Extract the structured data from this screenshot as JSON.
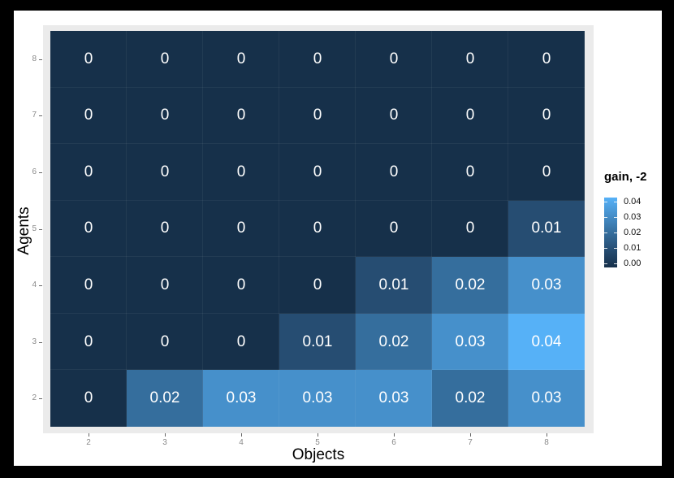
{
  "chart_data": {
    "type": "heatmap",
    "title": "",
    "xlabel": "Objects",
    "ylabel": "Agents",
    "x_categories": [
      "2",
      "3",
      "4",
      "5",
      "6",
      "7",
      "8"
    ],
    "y_categories": [
      "8",
      "7",
      "6",
      "5",
      "4",
      "3",
      "2"
    ],
    "cell_labels": [
      [
        "0",
        "0",
        "0",
        "0",
        "0",
        "0",
        "0"
      ],
      [
        "0",
        "0",
        "0",
        "0",
        "0",
        "0",
        "0"
      ],
      [
        "0",
        "0",
        "0",
        "0",
        "0",
        "0",
        "0"
      ],
      [
        "0",
        "0",
        "0",
        "0",
        "0",
        "0",
        "0.01"
      ],
      [
        "0",
        "0",
        "0",
        "0",
        "0.01",
        "0.02",
        "0.03"
      ],
      [
        "0",
        "0",
        "0",
        "0.01",
        "0.02",
        "0.03",
        "0.04"
      ],
      [
        "0",
        "0.02",
        "0.03",
        "0.03",
        "0.03",
        "0.02",
        "0.03"
      ]
    ],
    "values": [
      [
        0,
        0,
        0,
        0,
        0,
        0,
        0
      ],
      [
        0,
        0,
        0,
        0,
        0,
        0,
        0
      ],
      [
        0,
        0,
        0,
        0,
        0,
        0,
        0
      ],
      [
        0,
        0,
        0,
        0,
        0,
        0,
        0.01
      ],
      [
        0,
        0,
        0,
        0,
        0.01,
        0.02,
        0.03
      ],
      [
        0,
        0,
        0,
        0.01,
        0.02,
        0.03,
        0.04
      ],
      [
        0,
        0.02,
        0.03,
        0.03,
        0.03,
        0.02,
        0.03
      ]
    ],
    "value_range": [
      0,
      0.04
    ],
    "grid": false,
    "legend": {
      "title": "gain, -2",
      "position": "right",
      "tick_labels": [
        "0.04",
        "0.03",
        "0.02",
        "0.01",
        "0.00"
      ]
    },
    "colors": {
      "scale_low": "#16304A",
      "scale_high": "#56B1F7",
      "stops": {
        "0": "#16304A",
        "0.01": "#264D72",
        "0.02": "#356E9D",
        "0.03": "#4690CB",
        "0.04": "#56B1F7"
      },
      "panel_bg": "#EBEBEB",
      "figure_bg": "#FFFFFF",
      "page_bg": "#000000",
      "cell_text": "#FFFFFF",
      "axis_tick_text": "#8A8A8A",
      "axis_tick_mark": "#666666",
      "axis_title_text": "#000000"
    }
  }
}
